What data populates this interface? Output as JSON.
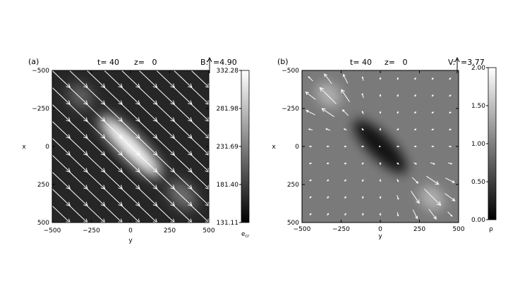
{
  "chart_data": [
    {
      "type": "heatmap",
      "panel_label": "(a)",
      "title_t": "t= 40",
      "title_z": "z=   0",
      "vector_label": "B:",
      "vector_scale": "=4.90",
      "xlabel": "y",
      "ylabel": "x",
      "x_ticks": [
        "−500",
        "−250",
        "0",
        "250",
        "500"
      ],
      "y_ticks": [
        "−500",
        "−250",
        "0",
        "250",
        "500"
      ],
      "xlim": [
        -500,
        500
      ],
      "ylim": [
        -500,
        500
      ],
      "colorbar": {
        "label_main": "e",
        "label_sub": "cr",
        "ticks": [
          "332.28",
          "281.98",
          "231.69",
          "181.40",
          "131.11"
        ],
        "range": [
          131.11,
          332.28
        ]
      },
      "vector_field": {
        "direction": [
          1,
          1
        ],
        "uniform": true,
        "grid": 9,
        "magnitude": 4.9
      },
      "blobs": [
        {
          "x": 0,
          "y": 0,
          "sx": 65,
          "sy": 270,
          "angle": 45,
          "amp": 1.0
        },
        {
          "x": 330,
          "y": 320,
          "sx": 70,
          "sy": 110,
          "angle": 45,
          "amp": 0.35
        },
        {
          "x": -320,
          "y": -330,
          "sx": 70,
          "sy": 90,
          "angle": 45,
          "amp": 0.28
        }
      ]
    },
    {
      "type": "heatmap",
      "panel_label": "(b)",
      "title_t": "t= 40",
      "title_z": "z=   0",
      "vector_label": "V:",
      "vector_scale": "=3.77",
      "xlabel": "y",
      "ylabel": "x",
      "x_ticks": [
        "−500",
        "−250",
        "0",
        "250",
        "500"
      ],
      "y_ticks": [
        "−250",
        "0",
        "250",
        "500"
      ],
      "y_tick_values": [
        -250,
        0,
        250,
        500
      ],
      "y_top_tick": "−500",
      "xlim": [
        -500,
        500
      ],
      "ylim": [
        -500,
        500
      ],
      "colorbar": {
        "label_main": "ρ",
        "ticks": [
          "2.00",
          "1.50",
          "1.00",
          "0.50",
          "0.00"
        ],
        "range": [
          0.0,
          2.0
        ]
      },
      "vector_field": {
        "type": "outflow",
        "grid": 9,
        "magnitude": 3.77
      },
      "blobs": [
        {
          "x": 0,
          "y": 0,
          "sx": 75,
          "sy": 230,
          "angle": 45,
          "amp": -0.85
        },
        {
          "x": 330,
          "y": 340,
          "sx": 70,
          "sy": 90,
          "angle": 45,
          "amp": 0.4
        },
        {
          "x": -330,
          "y": -340,
          "sx": 70,
          "sy": 90,
          "angle": 45,
          "amp": 0.4
        }
      ]
    }
  ]
}
